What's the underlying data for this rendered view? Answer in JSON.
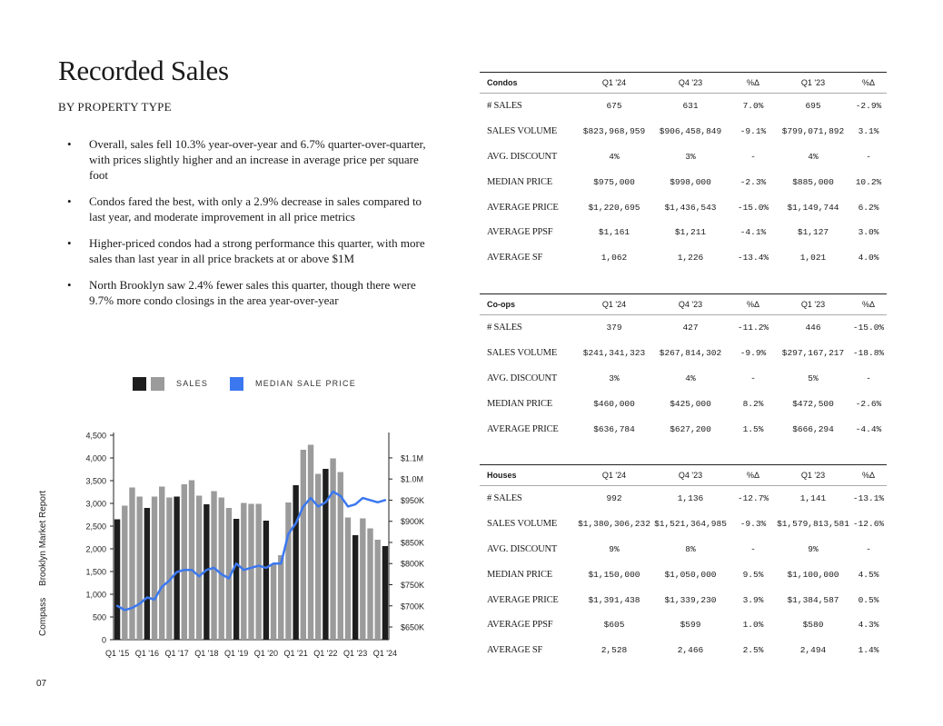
{
  "page": {
    "title": "Recorded Sales",
    "subtitle": "BY PROPERTY TYPE",
    "page_number": "07",
    "sidebar_brand": "Compass",
    "sidebar_report": "Brooklyn Market Report",
    "bullets": [
      "Overall, sales fell 10.3% year-over-year and 6.7% quarter-over-quarter, with prices slightly higher and an increase in average price per square foot",
      "Condos fared the best, with only a 2.9% decrease in sales compared to last year, and moderate improvement in all price metrics",
      "Higher-priced condos had a strong performance this quarter, with more sales than last year in all price brackets at or above $1M",
      "North Brooklyn saw 2.4% fewer sales this quarter, though there were 9.7% more condo closings in the area year-over-year"
    ]
  },
  "legend": {
    "sales": "SALES",
    "median": "MEDIAN SALE PRICE"
  },
  "colors": {
    "bar_dark": "#1e1e1e",
    "bar_gray": "#9b9b9b",
    "line": "#3b78f0"
  },
  "chart_data": {
    "type": "bar",
    "x_tick_labels": [
      "Q1 '15",
      "Q1 '16",
      "Q1 '17",
      "Q1 '18",
      "Q1 '19",
      "Q1 '20",
      "Q1 '21",
      "Q1 '22",
      "Q1 '23",
      "Q1 '24"
    ],
    "series": [
      {
        "name": "SALES",
        "axis": "left",
        "values": [
          2650,
          2950,
          3350,
          3150,
          2900,
          3150,
          3370,
          3130,
          3150,
          3420,
          3510,
          3170,
          2980,
          3270,
          3130,
          2900,
          2660,
          3010,
          2990,
          2990,
          2620,
          1670,
          1860,
          3020,
          3400,
          4180,
          4290,
          3650,
          3760,
          3990,
          3690,
          2690,
          2300,
          2670,
          2450,
          2200,
          2060
        ]
      },
      {
        "name": "MEDIAN SALE PRICE",
        "axis": "right",
        "values": [
          700000,
          690000,
          695000,
          705000,
          720000,
          715000,
          745000,
          760000,
          780000,
          785000,
          785000,
          770000,
          785000,
          790000,
          775000,
          765000,
          800000,
          785000,
          790000,
          795000,
          790000,
          800000,
          800000,
          870000,
          895000,
          935000,
          955000,
          935000,
          945000,
          970000,
          960000,
          935000,
          940000,
          955000,
          950000,
          945000,
          950000
        ]
      }
    ],
    "quarters": 37,
    "y_left": {
      "ticks": [
        "0",
        "500",
        "1,000",
        "1,500",
        "2,000",
        "2,500",
        "3,000",
        "3,500",
        "4,000",
        "4,500"
      ],
      "range": [
        0,
        4500
      ]
    },
    "y_right": {
      "ticks": [
        "$650K",
        "$700K",
        "$750K",
        "$800K",
        "$850K",
        "$900K",
        "$950K",
        "$1.0M",
        "$1.1M"
      ],
      "range": [
        620000,
        1110000
      ]
    },
    "dark_bar_note": "Q1 bars shown in dark"
  },
  "tables": {
    "columns": [
      "Q1 '24",
      "Q4 '23",
      "%Δ",
      "Q1 '23",
      "%Δ"
    ],
    "condos": {
      "name": "Condos",
      "rows": [
        [
          "# SALES",
          "675",
          "631",
          "7.0%",
          "695",
          "-2.9%"
        ],
        [
          "SALES VOLUME",
          "$823,968,959",
          "$906,458,849",
          "-9.1%",
          "$799,071,892",
          "3.1%"
        ],
        [
          "AVG. DISCOUNT",
          "4%",
          "3%",
          "-",
          "4%",
          "-"
        ],
        [
          "MEDIAN PRICE",
          "$975,000",
          "$998,000",
          "-2.3%",
          "$885,000",
          "10.2%"
        ],
        [
          "AVERAGE PRICE",
          "$1,220,695",
          "$1,436,543",
          "-15.0%",
          "$1,149,744",
          "6.2%"
        ],
        [
          "AVERAGE PPSF",
          "$1,161",
          "$1,211",
          "-4.1%",
          "$1,127",
          "3.0%"
        ],
        [
          "AVERAGE SF",
          "1,062",
          "1,226",
          "-13.4%",
          "1,021",
          "4.0%"
        ]
      ]
    },
    "coops": {
      "name": "Co-ops",
      "rows": [
        [
          "# SALES",
          "379",
          "427",
          "-11.2%",
          "446",
          "-15.0%"
        ],
        [
          "SALES VOLUME",
          "$241,341,323",
          "$267,814,302",
          "-9.9%",
          "$297,167,217",
          "-18.8%"
        ],
        [
          "AVG. DISCOUNT",
          "3%",
          "4%",
          "-",
          "5%",
          "-"
        ],
        [
          "MEDIAN PRICE",
          "$460,000",
          "$425,000",
          "8.2%",
          "$472,500",
          "-2.6%"
        ],
        [
          "AVERAGE PRICE",
          "$636,784",
          "$627,200",
          "1.5%",
          "$666,294",
          "-4.4%"
        ]
      ]
    },
    "houses": {
      "name": "Houses",
      "rows": [
        [
          "# SALES",
          "992",
          "1,136",
          "-12.7%",
          "1,141",
          "-13.1%"
        ],
        [
          "SALES VOLUME",
          "$1,380,306,232",
          "$1,521,364,985",
          "-9.3%",
          "$1,579,813,581",
          "-12.6%"
        ],
        [
          "AVG. DISCOUNT",
          "9%",
          "8%",
          "-",
          "9%",
          "-"
        ],
        [
          "MEDIAN PRICE",
          "$1,150,000",
          "$1,050,000",
          "9.5%",
          "$1,100,000",
          "4.5%"
        ],
        [
          "AVERAGE PRICE",
          "$1,391,438",
          "$1,339,230",
          "3.9%",
          "$1,384,587",
          "0.5%"
        ],
        [
          "AVERAGE PPSF",
          "$605",
          "$599",
          "1.0%",
          "$580",
          "4.3%"
        ],
        [
          "AVERAGE SF",
          "2,528",
          "2,466",
          "2.5%",
          "2,494",
          "1.4%"
        ]
      ]
    }
  }
}
